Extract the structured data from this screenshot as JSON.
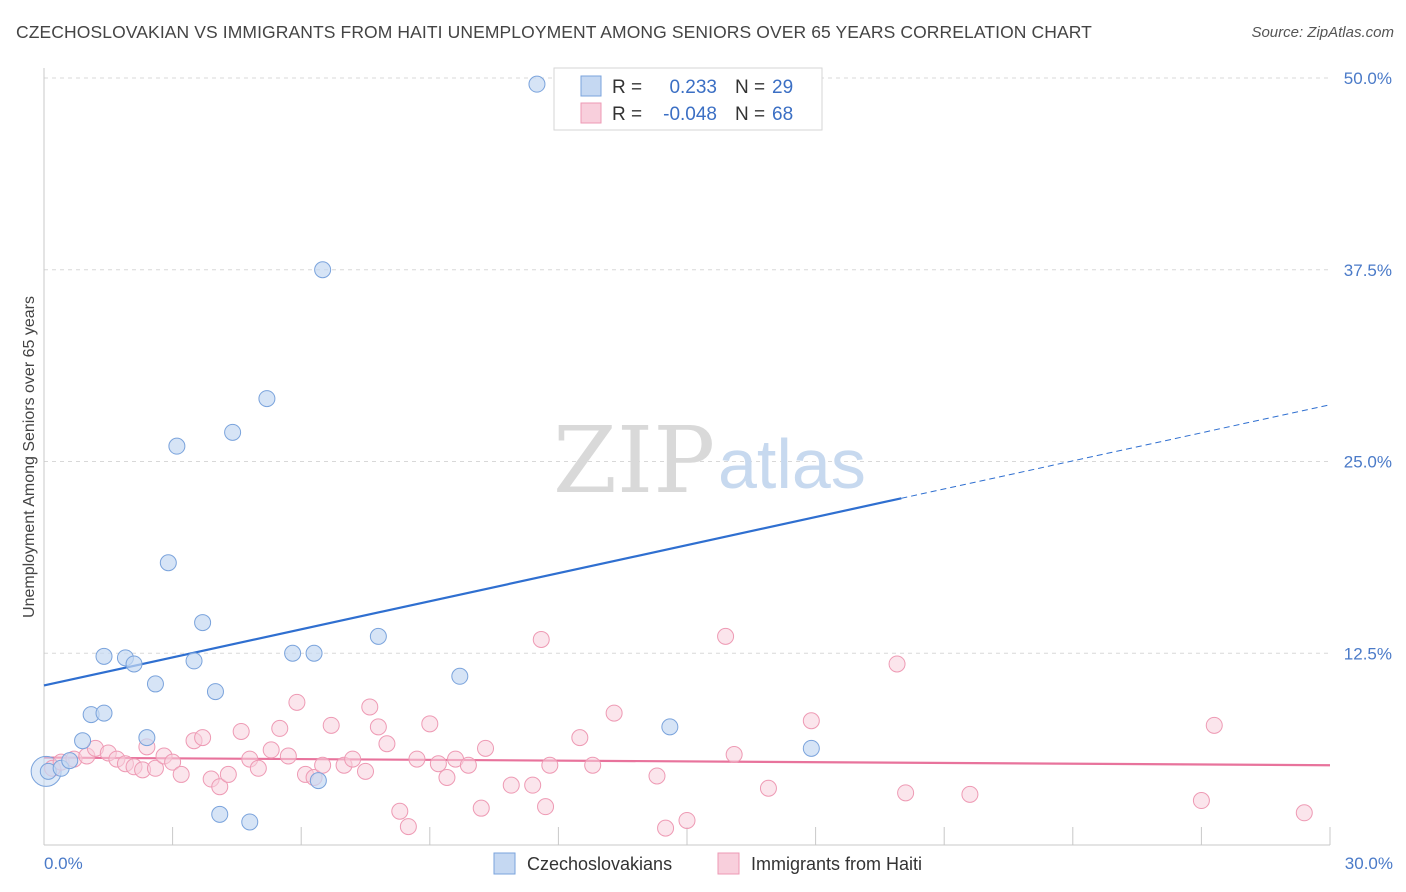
{
  "title": "CZECHOSLOVAKIAN VS IMMIGRANTS FROM HAITI UNEMPLOYMENT AMONG SENIORS OVER 65 YEARS CORRELATION CHART",
  "source": "Source: ZipAtlas.com",
  "watermark": {
    "zip": "ZIP",
    "atlas": "atlas"
  },
  "colors": {
    "blue_fill": "#c5d8f2",
    "blue_stroke": "#7aa3dc",
    "blue_line": "#2f6fd0",
    "pink_fill": "#f8cfdc",
    "pink_stroke": "#ee9ab4",
    "pink_line": "#e8739c",
    "grid": "#d8d8d8",
    "axis_text": "#4a7ac8"
  },
  "stats_box": [
    {
      "r_label": "R =",
      "r_value": "0.233",
      "n_label": "N =",
      "n_value": "29"
    },
    {
      "r_label": "R =",
      "r_value": "-0.048",
      "n_label": "N =",
      "n_value": "68"
    }
  ],
  "chart_data": {
    "type": "scatter",
    "title": "CZECHOSLOVAKIAN VS IMMIGRANTS FROM HAITI UNEMPLOYMENT AMONG SENIORS OVER 65 YEARS CORRELATION CHART",
    "xlabel": "",
    "ylabel": "Unemployment Among Seniors over 65 years",
    "xlim": [
      0,
      30
    ],
    "ylim": [
      0,
      50
    ],
    "x_tick_labels": [
      "0.0%",
      "30.0%"
    ],
    "y_ticks": [
      12.5,
      25.0,
      37.5,
      50.0
    ],
    "y_tick_labels": [
      "12.5%",
      "25.0%",
      "37.5%",
      "50.0%"
    ],
    "grid": "horizontal dashed",
    "legend_position": "bottom-center",
    "series": [
      {
        "name": "Czechoslovakians",
        "r": 0.233,
        "n": 29,
        "points": [
          [
            0.1,
            4.8
          ],
          [
            0.4,
            5.0
          ],
          [
            0.6,
            5.5
          ],
          [
            0.9,
            6.8
          ],
          [
            1.1,
            8.5
          ],
          [
            1.4,
            8.6
          ],
          [
            1.4,
            12.3
          ],
          [
            1.9,
            12.2
          ],
          [
            2.1,
            11.8
          ],
          [
            2.4,
            7.0
          ],
          [
            2.6,
            10.5
          ],
          [
            2.9,
            18.4
          ],
          [
            3.1,
            26.0
          ],
          [
            3.5,
            12.0
          ],
          [
            3.7,
            14.5
          ],
          [
            4.0,
            10.0
          ],
          [
            4.1,
            2.0
          ],
          [
            4.4,
            26.9
          ],
          [
            4.8,
            1.5
          ],
          [
            5.2,
            29.1
          ],
          [
            5.8,
            12.5
          ],
          [
            6.3,
            12.5
          ],
          [
            6.4,
            4.2
          ],
          [
            6.5,
            37.5
          ],
          [
            7.8,
            13.6
          ],
          [
            9.7,
            11.0
          ],
          [
            11.5,
            49.6
          ],
          [
            14.6,
            7.7
          ],
          [
            17.9,
            6.3
          ]
        ],
        "trend": {
          "x0": 0,
          "y0": 10.4,
          "x1": 20,
          "y1": 22.6,
          "dashed_to_x": 30,
          "dashed_to_y": 28.7
        }
      },
      {
        "name": "Immigrants from Haiti",
        "r": -0.048,
        "n": 68,
        "points": [
          [
            0.2,
            5.0
          ],
          [
            0.4,
            5.4
          ],
          [
            0.7,
            5.6
          ],
          [
            1.0,
            5.8
          ],
          [
            1.2,
            6.3
          ],
          [
            1.5,
            6.0
          ],
          [
            1.7,
            5.6
          ],
          [
            1.9,
            5.3
          ],
          [
            2.1,
            5.1
          ],
          [
            2.3,
            4.9
          ],
          [
            2.4,
            6.4
          ],
          [
            2.6,
            5.0
          ],
          [
            2.8,
            5.8
          ],
          [
            3.0,
            5.4
          ],
          [
            3.2,
            4.6
          ],
          [
            3.5,
            6.8
          ],
          [
            3.7,
            7.0
          ],
          [
            3.9,
            4.3
          ],
          [
            4.1,
            3.8
          ],
          [
            4.3,
            4.6
          ],
          [
            4.6,
            7.4
          ],
          [
            4.8,
            5.6
          ],
          [
            5.0,
            5.0
          ],
          [
            5.3,
            6.2
          ],
          [
            5.5,
            7.6
          ],
          [
            5.7,
            5.8
          ],
          [
            5.9,
            9.3
          ],
          [
            6.1,
            4.6
          ],
          [
            6.3,
            4.4
          ],
          [
            6.5,
            5.2
          ],
          [
            6.7,
            7.8
          ],
          [
            7.0,
            5.2
          ],
          [
            7.2,
            5.6
          ],
          [
            7.5,
            4.8
          ],
          [
            7.6,
            9.0
          ],
          [
            7.8,
            7.7
          ],
          [
            8.0,
            6.6
          ],
          [
            8.3,
            2.2
          ],
          [
            8.5,
            1.2
          ],
          [
            8.7,
            5.6
          ],
          [
            9.0,
            7.9
          ],
          [
            9.2,
            5.3
          ],
          [
            9.4,
            4.4
          ],
          [
            9.6,
            5.6
          ],
          [
            9.9,
            5.2
          ],
          [
            10.3,
            6.3
          ],
          [
            10.2,
            2.4
          ],
          [
            10.9,
            3.9
          ],
          [
            11.4,
            3.9
          ],
          [
            11.8,
            5.2
          ],
          [
            11.7,
            2.5
          ],
          [
            11.6,
            13.4
          ],
          [
            12.8,
            5.2
          ],
          [
            12.5,
            7.0
          ],
          [
            13.3,
            8.6
          ],
          [
            14.3,
            4.5
          ],
          [
            14.5,
            1.1
          ],
          [
            15.0,
            1.6
          ],
          [
            15.9,
            13.6
          ],
          [
            16.1,
            5.9
          ],
          [
            16.9,
            3.7
          ],
          [
            17.9,
            8.1
          ],
          [
            19.9,
            11.8
          ],
          [
            20.1,
            3.4
          ],
          [
            21.6,
            3.3
          ],
          [
            27.0,
            2.9
          ],
          [
            27.3,
            7.8
          ],
          [
            29.4,
            2.1
          ]
        ],
        "trend": {
          "x0": 0,
          "y0": 5.7,
          "x1": 30,
          "y1": 5.2
        }
      }
    ]
  }
}
